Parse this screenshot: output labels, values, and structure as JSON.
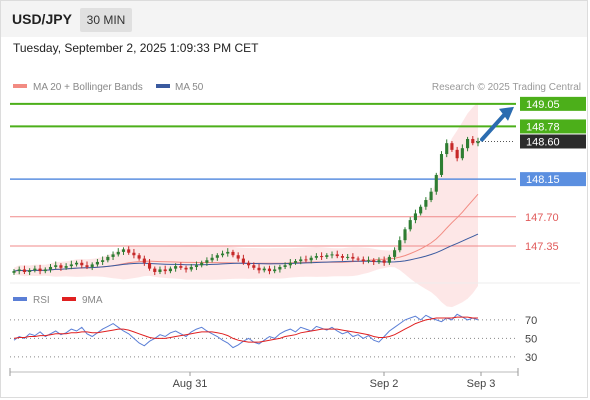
{
  "header": {
    "symbol": "USD/JPY",
    "timeframe": "30 MIN"
  },
  "datetime": "Tuesday, September 2, 2025 1:09:33 PM CET",
  "attribution": "Research © 2025 Trading Central",
  "colors": {
    "up_candle": "#2e7d32",
    "down_candle": "#c62828",
    "resistance_line": "#4caf1a",
    "pivot_line": "#5b8fe0",
    "support_line": "#f08a8a",
    "ma20": "#f28b82",
    "ma50": "#3a5a9f",
    "bollinger_fill": "#fde3e3",
    "rsi": "#5b7fd6",
    "rsi_ma": "#e02020",
    "arrow": "#2b6cb0"
  },
  "chart_data": [
    {
      "type": "candlestick",
      "title": "",
      "legend": [
        {
          "name": "MA 20 + Bollinger Bands",
          "color": "#f28b82"
        },
        {
          "name": "MA 50",
          "color": "#3a5a9f"
        }
      ],
      "legend_position": "top-left",
      "x_ticks": [
        "Aug 31",
        "Sep 2",
        "Sep 3"
      ],
      "y_range": [
        146.92,
        149.12
      ],
      "last_price": 148.6,
      "levels": [
        {
          "label": "149.05",
          "value": 149.05,
          "kind": "resistance"
        },
        {
          "label": "148.78",
          "value": 148.78,
          "kind": "resistance"
        },
        {
          "label": "148.60",
          "value": 148.6,
          "kind": "last"
        },
        {
          "label": "148.15",
          "value": 148.15,
          "kind": "pivot"
        },
        {
          "label": "147.70",
          "value": 147.7,
          "kind": "support"
        },
        {
          "label": "147.35",
          "value": 147.35,
          "kind": "support"
        }
      ],
      "close_series": [
        147.05,
        147.07,
        147.04,
        147.06,
        147.08,
        147.05,
        147.07,
        147.1,
        147.12,
        147.09,
        147.11,
        147.13,
        147.15,
        147.12,
        147.1,
        147.13,
        147.16,
        147.18,
        147.22,
        147.25,
        147.28,
        147.31,
        147.27,
        147.24,
        147.2,
        147.15,
        147.08,
        147.04,
        147.07,
        147.05,
        147.08,
        147.11,
        147.09,
        147.07,
        147.1,
        147.12,
        147.15,
        147.18,
        147.21,
        147.24,
        147.26,
        147.28,
        147.24,
        147.2,
        147.15,
        147.12,
        147.09,
        147.06,
        147.08,
        147.05,
        147.07,
        147.1,
        147.12,
        147.15,
        147.17,
        147.19,
        147.18,
        147.21,
        147.23,
        147.22,
        147.24,
        147.25,
        147.23,
        147.21,
        147.22,
        147.2,
        147.19,
        147.17,
        147.18,
        147.16,
        147.18,
        147.15,
        147.22,
        147.3,
        147.42,
        147.55,
        147.66,
        147.74,
        147.82,
        147.9,
        148.0,
        148.2,
        148.45,
        148.58,
        148.5,
        148.4,
        148.52,
        148.63,
        148.58,
        148.6
      ]
    },
    {
      "type": "line",
      "title": "",
      "series": [
        {
          "name": "RSI",
          "color": "#5b7fd6"
        },
        {
          "name": "9MA",
          "color": "#e02020"
        }
      ],
      "legend_position": "top-left",
      "y_ticks": [
        70,
        50,
        30
      ],
      "y_range": [
        18,
        85
      ],
      "rsi_values": [
        48,
        52,
        50,
        55,
        53,
        57,
        52,
        55,
        58,
        54,
        56,
        60,
        58,
        62,
        55,
        52,
        56,
        60,
        63,
        66,
        62,
        58,
        55,
        50,
        45,
        42,
        47,
        50,
        54,
        52,
        56,
        58,
        55,
        52,
        57,
        60,
        62,
        58,
        55,
        52,
        48,
        45,
        40,
        43,
        47,
        50,
        46,
        44,
        48,
        52,
        50,
        55,
        58,
        60,
        57,
        62,
        60,
        58,
        63,
        61,
        59,
        62,
        58,
        55,
        57,
        52,
        54,
        50,
        53,
        48,
        46,
        52,
        58,
        62,
        66,
        70,
        72,
        74,
        70,
        75,
        72,
        70,
        68,
        72,
        70,
        76,
        73,
        70,
        72,
        70
      ],
      "rsi_ma_values": [
        50,
        51,
        51,
        52,
        52,
        53,
        53,
        54,
        55,
        55,
        55,
        56,
        56,
        57,
        57,
        56,
        56,
        57,
        58,
        59,
        60,
        60,
        59,
        57,
        55,
        53,
        51,
        50,
        50,
        50,
        51,
        52,
        53,
        54,
        55,
        56,
        57,
        57,
        57,
        56,
        55,
        53,
        50,
        48,
        47,
        46,
        46,
        46,
        47,
        48,
        49,
        50,
        52,
        53,
        54,
        56,
        57,
        58,
        59,
        60,
        60,
        60,
        60,
        59,
        58,
        57,
        56,
        55,
        54,
        52,
        51,
        51,
        52,
        54,
        57,
        60,
        63,
        66,
        68,
        70,
        71,
        72,
        72,
        72,
        72,
        73,
        73,
        73,
        72,
        72
      ]
    }
  ]
}
